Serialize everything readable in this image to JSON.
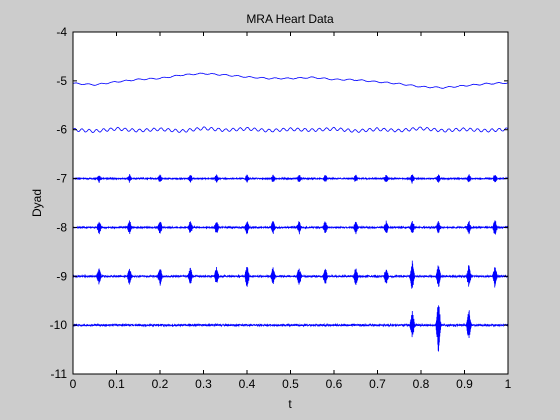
{
  "chart_data": {
    "type": "line",
    "title": "MRA Heart Data",
    "xlabel": "t",
    "ylabel": "Dyad",
    "xlim": [
      0,
      1
    ],
    "ylim": [
      -11,
      -4
    ],
    "xticks": [
      0,
      0.1,
      0.2,
      0.3,
      0.4,
      0.5,
      0.6,
      0.7,
      0.8,
      0.9,
      1
    ],
    "xtick_labels": [
      "0",
      "0.1",
      "0.2",
      "0.3",
      "0.4",
      "0.5",
      "0.6",
      "0.7",
      "0.8",
      "0.9",
      "1"
    ],
    "yticks": [
      -11,
      -10,
      -9,
      -8,
      -7,
      -6,
      -5,
      -4
    ],
    "ytick_labels": [
      "-11",
      "-10",
      "-9",
      "-8",
      "-7",
      "-6",
      "-5",
      "-4"
    ],
    "grid": false,
    "legend": false,
    "line_color": "#0000ff",
    "series": [
      {
        "baseline": -5,
        "points": [
          [
            0,
            -5.05
          ],
          [
            0.05,
            -5.08
          ],
          [
            0.1,
            -5.02
          ],
          [
            0.15,
            -4.97
          ],
          [
            0.2,
            -4.95
          ],
          [
            0.25,
            -4.88
          ],
          [
            0.3,
            -4.85
          ],
          [
            0.35,
            -4.88
          ],
          [
            0.4,
            -4.92
          ],
          [
            0.45,
            -4.95
          ],
          [
            0.5,
            -4.95
          ],
          [
            0.55,
            -4.93
          ],
          [
            0.6,
            -4.97
          ],
          [
            0.65,
            -4.98
          ],
          [
            0.7,
            -5.02
          ],
          [
            0.75,
            -5.06
          ],
          [
            0.8,
            -5.12
          ],
          [
            0.85,
            -5.14
          ],
          [
            0.9,
            -5.1
          ],
          [
            0.95,
            -5.06
          ],
          [
            1,
            -5.04
          ]
        ]
      },
      {
        "baseline": -6,
        "points": [
          [
            0,
            -6.0
          ],
          [
            0.05,
            -6.03
          ],
          [
            0.1,
            -5.98
          ],
          [
            0.15,
            -6.02
          ],
          [
            0.2,
            -5.99
          ],
          [
            0.25,
            -6.03
          ],
          [
            0.3,
            -5.97
          ],
          [
            0.35,
            -6.01
          ],
          [
            0.4,
            -5.98
          ],
          [
            0.45,
            -6.02
          ],
          [
            0.5,
            -5.99
          ],
          [
            0.55,
            -6.01
          ],
          [
            0.6,
            -5.98
          ],
          [
            0.65,
            -6.03
          ],
          [
            0.7,
            -5.99
          ],
          [
            0.75,
            -6.02
          ],
          [
            0.8,
            -5.97
          ],
          [
            0.85,
            -6.02
          ],
          [
            0.9,
            -5.99
          ],
          [
            0.95,
            -6.02
          ],
          [
            1,
            -5.99
          ]
        ]
      },
      {
        "baseline": -7,
        "spikes": [
          [
            0.06,
            0.09
          ],
          [
            0.13,
            0.09
          ],
          [
            0.2,
            0.09
          ],
          [
            0.27,
            0.09
          ],
          [
            0.33,
            0.09
          ],
          [
            0.4,
            0.09
          ],
          [
            0.46,
            0.09
          ],
          [
            0.52,
            0.09
          ],
          [
            0.58,
            0.09
          ],
          [
            0.65,
            0.09
          ],
          [
            0.72,
            0.09
          ],
          [
            0.78,
            0.1
          ],
          [
            0.84,
            0.1
          ],
          [
            0.91,
            0.1
          ],
          [
            0.97,
            0.1
          ]
        ]
      },
      {
        "baseline": -8,
        "spikes": [
          [
            0.06,
            0.15
          ],
          [
            0.13,
            0.15
          ],
          [
            0.2,
            0.15
          ],
          [
            0.27,
            0.15
          ],
          [
            0.33,
            0.15
          ],
          [
            0.4,
            0.15
          ],
          [
            0.46,
            0.15
          ],
          [
            0.52,
            0.15
          ],
          [
            0.58,
            0.15
          ],
          [
            0.65,
            0.15
          ],
          [
            0.72,
            0.15
          ],
          [
            0.78,
            0.15
          ],
          [
            0.84,
            0.15
          ],
          [
            0.91,
            0.15
          ],
          [
            0.97,
            0.2
          ]
        ]
      },
      {
        "baseline": -9,
        "spikes": [
          [
            0.06,
            0.2
          ],
          [
            0.13,
            0.2
          ],
          [
            0.2,
            0.2
          ],
          [
            0.27,
            0.2
          ],
          [
            0.33,
            0.2
          ],
          [
            0.4,
            0.25
          ],
          [
            0.46,
            0.2
          ],
          [
            0.52,
            0.2
          ],
          [
            0.58,
            0.2
          ],
          [
            0.65,
            0.2
          ],
          [
            0.72,
            0.2
          ],
          [
            0.78,
            0.35
          ],
          [
            0.84,
            0.25
          ],
          [
            0.91,
            0.25
          ],
          [
            0.97,
            0.25
          ]
        ]
      },
      {
        "baseline": -10,
        "spikes": [
          [
            0.78,
            0.3
          ],
          [
            0.84,
            0.6
          ],
          [
            0.91,
            0.35
          ]
        ]
      }
    ]
  }
}
